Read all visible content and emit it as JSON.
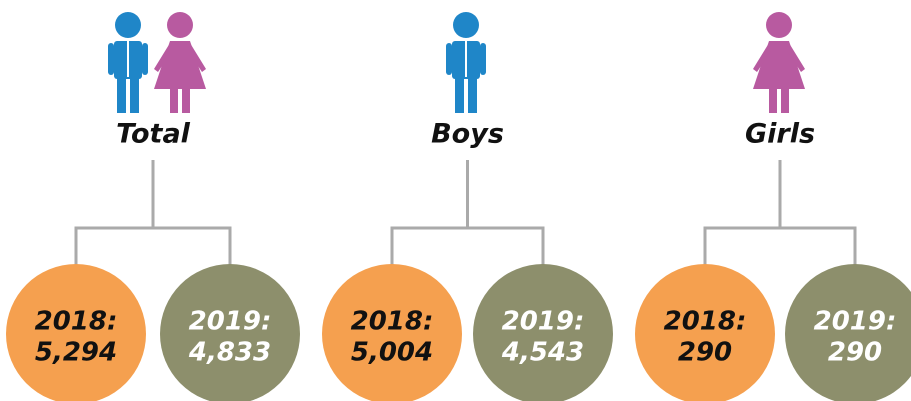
{
  "groups": [
    {
      "label": "Total",
      "items": [
        {
          "year": "2018:",
          "value": "5,294"
        },
        {
          "year": "2019:",
          "value": "4,833"
        }
      ]
    },
    {
      "label": "Boys",
      "items": [
        {
          "year": "2018:",
          "value": "5,004"
        },
        {
          "year": "2019:",
          "value": "4,543"
        }
      ]
    },
    {
      "label": "Girls",
      "items": [
        {
          "year": "2018:",
          "value": "290"
        },
        {
          "year": "2019:",
          "value": "290"
        }
      ]
    }
  ]
}
